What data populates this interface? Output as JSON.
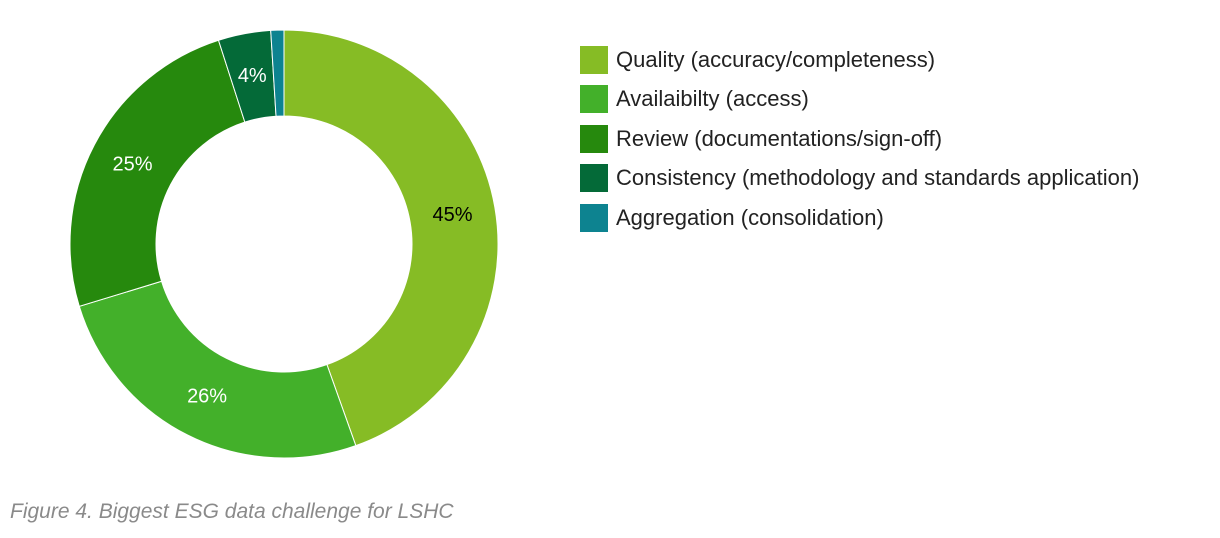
{
  "caption": "Figure 4. Biggest ESG data challenge for LSHC",
  "chart_data": {
    "type": "pie",
    "title": "",
    "series": [
      {
        "name": "Quality (accuracy/completeness)",
        "value": 45,
        "label": "45%",
        "color": "#86bc25",
        "label_color": "#000000"
      },
      {
        "name": "Availaibilty (access)",
        "value": 26,
        "label": "26%",
        "color": "#43b02a",
        "label_color": "#ffffff"
      },
      {
        "name": "Review (documentations/sign-off)",
        "value": 25,
        "label": "25%",
        "color": "#26890d",
        "label_color": "#ffffff"
      },
      {
        "name": "Consistency (methodology and standards application)",
        "value": 4,
        "label": "4%",
        "color": "#046a38",
        "label_color": "#ffffff"
      },
      {
        "name": "Aggregation (consolidation)",
        "value": 1,
        "label": "",
        "color": "#0d8390",
        "label_color": "#ffffff"
      }
    ],
    "donut": true,
    "legend_position": "right"
  }
}
